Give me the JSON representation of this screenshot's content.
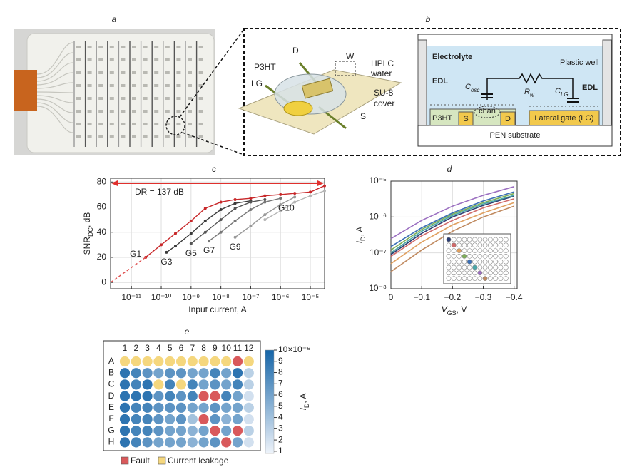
{
  "figure": {
    "a": {
      "label": "a"
    },
    "b": {
      "label": "b",
      "device": {
        "d": "D",
        "w": "W",
        "p3ht": "P3HT",
        "hplc": "HPLC",
        "water": "water",
        "lg": "LG",
        "su8": "SU-8",
        "cover": "cover",
        "s": "S"
      },
      "cross_section": {
        "electrolyte": "Electrolyte",
        "plastic_well": "Plastic well",
        "edl_left": "EDL",
        "edl_right": "EDL",
        "c_osc": {
          "main": "C",
          "sub": "osc"
        },
        "r_w": {
          "main": "R",
          "sub": "w"
        },
        "c_lg": {
          "main": "C",
          "sub": "LG"
        },
        "chan": "chan",
        "p3ht": "P3HT",
        "s": "S",
        "d": "D",
        "lateral_gate": "Lateral gate (LG)",
        "substrate": "PEN substrate"
      }
    },
    "c": {
      "label": "c"
    },
    "d": {
      "label": "d"
    },
    "e": {
      "label": "e"
    }
  },
  "chart_data": [
    {
      "type": "line",
      "xlog": true,
      "xlabel": "Input current, A",
      "ylabel": {
        "main": "SNR",
        "sub": "DC",
        "unit": ", dB"
      },
      "xlim": [
        2e-12,
        3e-05
      ],
      "ylim": [
        -5,
        83
      ],
      "xticks": [
        {
          "value": 1e-11,
          "label": "10⁻¹¹"
        },
        {
          "value": 1e-10,
          "label": "10⁻¹⁰"
        },
        {
          "value": 1e-09,
          "label": "10⁻⁹"
        },
        {
          "value": 1e-08,
          "label": "10⁻⁸"
        },
        {
          "value": 1e-07,
          "label": "10⁻⁷"
        },
        {
          "value": 1e-06,
          "label": "10⁻⁶"
        },
        {
          "value": 1e-05,
          "label": "10⁻⁵"
        }
      ],
      "yticks": [
        0,
        20,
        40,
        60,
        80
      ],
      "grid": true,
      "annotations": [
        {
          "text": "DR = 137 dB",
          "color": "#e0302d"
        }
      ],
      "series": [
        {
          "name": "G1",
          "color": "#c8282a",
          "x": [
            3e-11,
            1e-10,
            3e-10,
            1e-09,
            3e-09,
            1e-08,
            3e-08,
            1e-07,
            3e-07,
            1e-06,
            3e-06,
            1e-05,
            3e-05
          ],
          "values": [
            20,
            30,
            39,
            49,
            59,
            64,
            66,
            67,
            69,
            70,
            71,
            72,
            77
          ]
        },
        {
          "name": "G3",
          "color": "#3a3a3a",
          "x": [
            1.5e-10,
            3e-10,
            1e-09,
            3e-09,
            1e-08,
            3e-08,
            1e-07
          ],
          "values": [
            24,
            29,
            39,
            49,
            58,
            63,
            65
          ]
        },
        {
          "name": "G5",
          "color": "#555555",
          "x": [
            1e-09,
            3e-09,
            1e-08,
            3e-08,
            1e-07,
            3e-07
          ],
          "values": [
            31,
            40,
            50,
            59,
            64,
            66
          ]
        },
        {
          "name": "G7",
          "color": "#777777",
          "x": [
            4e-09,
            1e-08,
            3e-08,
            1e-07,
            3e-07,
            1e-06
          ],
          "values": [
            33,
            40,
            49,
            58,
            64,
            67
          ]
        },
        {
          "name": "G9",
          "color": "#999999",
          "x": [
            3e-08,
            1e-07,
            3e-07,
            1e-06,
            3e-06
          ],
          "values": [
            36,
            45,
            54,
            62,
            68
          ]
        },
        {
          "name": "G10",
          "color": "#b5b5b5",
          "x": [
            3e-07,
            1e-06,
            3e-06,
            1e-05,
            3e-05
          ],
          "values": [
            50,
            57,
            64,
            69,
            73
          ]
        },
        {
          "color": "#e05050",
          "style": "dashed",
          "x": [
            2e-12,
            3e-11
          ],
          "values": [
            0,
            20
          ]
        }
      ]
    },
    {
      "type": "line",
      "ylog": true,
      "xlabel": {
        "main": "V",
        "sub": "GS",
        "unit": ", V"
      },
      "ylabel": {
        "main": "I",
        "sub": "D",
        "unit": ", A"
      },
      "xlim": [
        0,
        -0.41
      ],
      "ylim": [
        1e-08,
        1e-05
      ],
      "xticks": [
        0,
        {
          "value": -0.1,
          "label": "−0.1"
        },
        {
          "value": -0.2,
          "label": "−0.2"
        },
        {
          "value": -0.3,
          "label": "−0.3"
        },
        {
          "value": -0.4,
          "label": "−0.4"
        }
      ],
      "yticks": [
        {
          "value": 1e-08,
          "label": "10⁻⁸"
        },
        {
          "value": 1e-07,
          "label": "10⁻⁷"
        },
        {
          "value": 1e-06,
          "label": "10⁻⁶"
        },
        {
          "value": 1e-05,
          "label": "10⁻⁵"
        }
      ],
      "grid": true,
      "x": [
        0,
        -0.1,
        -0.2,
        -0.3,
        -0.4
      ],
      "series": [
        {
          "color": "#2c3e73",
          "values": [
            9e-08,
            3.5e-07,
            1e-06,
            2.1e-06,
            3.8e-06
          ]
        },
        {
          "color": "#d06a6a",
          "values": [
            8e-08,
            3e-07,
            8e-07,
            1.8e-06,
            3.2e-06
          ]
        },
        {
          "color": "#e0a060",
          "values": [
            5e-08,
            2e-07,
            6e-07,
            1.3e-06,
            2.5e-06
          ]
        },
        {
          "color": "#7fae5a",
          "values": [
            1.2e-07,
            4.5e-07,
            1.2e-06,
            2.5e-06,
            4.5e-06
          ]
        },
        {
          "color": "#3b6fb6",
          "values": [
            1.5e-07,
            5e-07,
            1.3e-06,
            2.8e-06,
            5e-06
          ]
        },
        {
          "color": "#4aa7a8",
          "values": [
            1e-07,
            4e-07,
            1.1e-06,
            2.3e-06,
            4e-06
          ]
        },
        {
          "color": "#9b6fc0",
          "values": [
            2.5e-07,
            8e-07,
            2e-06,
            4e-06,
            7e-06
          ]
        },
        {
          "color": "#c08a60",
          "values": [
            3e-08,
            1.2e-07,
            4e-07,
            1e-06,
            2e-06
          ]
        }
      ]
    },
    {
      "type": "heatmap",
      "columns": [
        1,
        2,
        3,
        4,
        5,
        6,
        7,
        8,
        9,
        10,
        11,
        12
      ],
      "rows": [
        "A",
        "B",
        "C",
        "D",
        "E",
        "F",
        "G",
        "H"
      ],
      "values": [
        [
          null,
          null,
          null,
          null,
          null,
          null,
          null,
          null,
          null,
          null,
          null,
          null
        ],
        [
          9,
          8,
          7,
          6,
          7,
          7,
          6,
          6,
          8,
          6,
          9,
          3
        ],
        [
          9,
          8,
          9,
          null,
          8,
          null,
          8,
          6,
          7,
          6,
          8,
          3
        ],
        [
          9,
          9,
          9,
          7,
          8,
          7,
          8,
          null,
          null,
          8,
          6,
          2
        ],
        [
          9,
          8,
          8,
          7,
          7,
          7,
          6,
          6,
          7,
          6,
          6,
          3
        ],
        [
          9,
          8,
          8,
          7,
          6,
          7,
          4,
          null,
          7,
          5,
          6,
          2
        ],
        [
          9,
          8,
          8,
          7,
          6,
          6,
          5,
          6,
          null,
          6,
          null,
          3
        ],
        [
          9,
          8,
          7,
          6,
          6,
          6,
          5,
          6,
          7,
          null,
          6,
          2
        ]
      ],
      "fault_cells": [
        [
          0,
          10
        ],
        [
          3,
          7
        ],
        [
          3,
          8
        ],
        [
          5,
          7
        ],
        [
          6,
          8
        ],
        [
          6,
          10
        ],
        [
          7,
          9
        ]
      ],
      "leakage_cells": [
        [
          0,
          0
        ],
        [
          0,
          1
        ],
        [
          0,
          2
        ],
        [
          0,
          3
        ],
        [
          0,
          4
        ],
        [
          0,
          5
        ],
        [
          0,
          6
        ],
        [
          0,
          7
        ],
        [
          0,
          8
        ],
        [
          0,
          9
        ],
        [
          0,
          11
        ],
        [
          2,
          3
        ],
        [
          2,
          5
        ]
      ],
      "fault": {
        "name": "Fault",
        "color": "#d9595b"
      },
      "leakage": {
        "name": "Current leakage",
        "color": "#f5d77e"
      },
      "colormap": [
        "#eef3fa",
        "#1565a8"
      ],
      "clim": [
        0.8,
        10
      ],
      "cticks": [
        1,
        2,
        3,
        4,
        5,
        6,
        7,
        8,
        9,
        {
          "value": 10,
          "label": "10×10⁻⁶"
        }
      ],
      "clabel": {
        "main": "I",
        "sub": "D",
        "unit": ", A"
      }
    }
  ]
}
